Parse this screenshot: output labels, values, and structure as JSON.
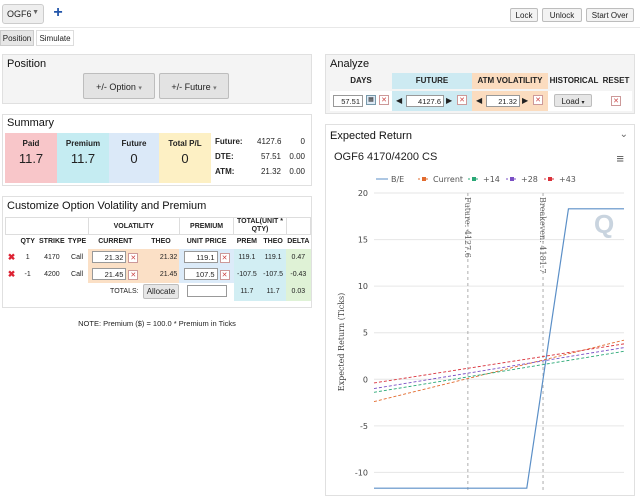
{
  "top": {
    "tab_label": "OGF6",
    "plus": "+",
    "lock": "Lock",
    "unlock": "Unlock",
    "start_over": "Start Over",
    "sub_tabs": [
      "Position",
      "Simulate"
    ]
  },
  "position": {
    "title": "Position",
    "option_btn": "+/- Option",
    "future_btn": "+/- Future"
  },
  "summary": {
    "title": "Summary",
    "paid_label": "Paid",
    "paid_value": "11.7",
    "premium_label": "Premium",
    "premium_value": "11.7",
    "future_label": "Future",
    "future_value": "0",
    "total_label": "Total P/L",
    "total_value": "0",
    "rows": [
      {
        "label": "Future:",
        "v1": "4127.6",
        "v2": "0"
      },
      {
        "label": "DTE:",
        "v1": "57.51",
        "v2": "0.00"
      },
      {
        "label": "ATM:",
        "v1": "21.32",
        "v2": "0.00"
      }
    ]
  },
  "customize": {
    "title": "Customize Option Volatility and Premium",
    "h_volatility": "VOLATILITY",
    "h_premium": "PREMIUM",
    "h_total": "TOTAL(UNIT * QTY)",
    "cols": [
      "QTY",
      "STRIKE",
      "TYPE",
      "CURRENT",
      "THEO",
      "UNIT PRICE",
      "PREM",
      "THEO",
      "DELTA"
    ],
    "rows": [
      {
        "qty": "1",
        "strike": "4170",
        "type": "Call",
        "current": "21.32",
        "theo": "21.32",
        "unit_price": "119.1",
        "prem": "119.1",
        "ttheo": "119.1",
        "delta": "0.47"
      },
      {
        "qty": "-1",
        "strike": "4200",
        "type": "Call",
        "current": "21.45",
        "theo": "21.45",
        "unit_price": "107.5",
        "prem": "-107.5",
        "ttheo": "-107.5",
        "delta": "-0.43"
      }
    ],
    "totals_label": "TOTALS:",
    "allocate": "Allocate",
    "tot_prem": "11.7",
    "tot_theo": "11.7",
    "tot_delta": "0.03",
    "note": "NOTE: Premium ($) = 100.0 * Premium in Ticks"
  },
  "analyze": {
    "title": "Analyze",
    "h_days": "DAYS",
    "h_future": "FUTURE",
    "h_atm": "ATM VOLATILITY",
    "h_hist": "HISTORICAL",
    "h_reset": "RESET",
    "days": "57.51",
    "future": "4127.6",
    "atm": "21.32",
    "load": "Load"
  },
  "expected": {
    "title": "Expected Return",
    "subtitle": "OGF6 4170/4200 CS",
    "watermark": "Q"
  },
  "chart_data": {
    "type": "line",
    "ylabel": "Expected Return (Ticks)",
    "ylim": [
      -12,
      20
    ],
    "yticks": [
      20,
      15,
      10,
      5,
      0,
      -5,
      -10
    ],
    "xlim": [
      4060,
      4240
    ],
    "legend": [
      "B/E",
      "Current",
      "+14",
      "+28",
      "+43"
    ],
    "legend_placement": "top",
    "colors": {
      "be": "#5b8fc7",
      "current": "#e26b2e",
      "p14": "#2aa876",
      "p28": "#7a4fc4",
      "p43": "#d9313a"
    },
    "annotations": [
      {
        "text": "Future: 4127.6",
        "x": 4127.6
      },
      {
        "text": "Breakeven: 4181.7",
        "x": 4181.7
      }
    ],
    "series": [
      {
        "name": "B/E",
        "x": [
          4060,
          4170,
          4200,
          4240
        ],
        "y": [
          -11.7,
          -11.7,
          18.3,
          18.3
        ]
      },
      {
        "name": "Current",
        "x": [
          4060,
          4240
        ],
        "y": [
          -2.4,
          4.2
        ]
      },
      {
        "name": "+14",
        "x": [
          4060,
          4240
        ],
        "y": [
          -1.4,
          3.0
        ]
      },
      {
        "name": "+28",
        "x": [
          4060,
          4240
        ],
        "y": [
          -1.0,
          3.4
        ]
      },
      {
        "name": "+43",
        "x": [
          4060,
          4240
        ],
        "y": [
          -0.4,
          3.8
        ]
      }
    ]
  }
}
